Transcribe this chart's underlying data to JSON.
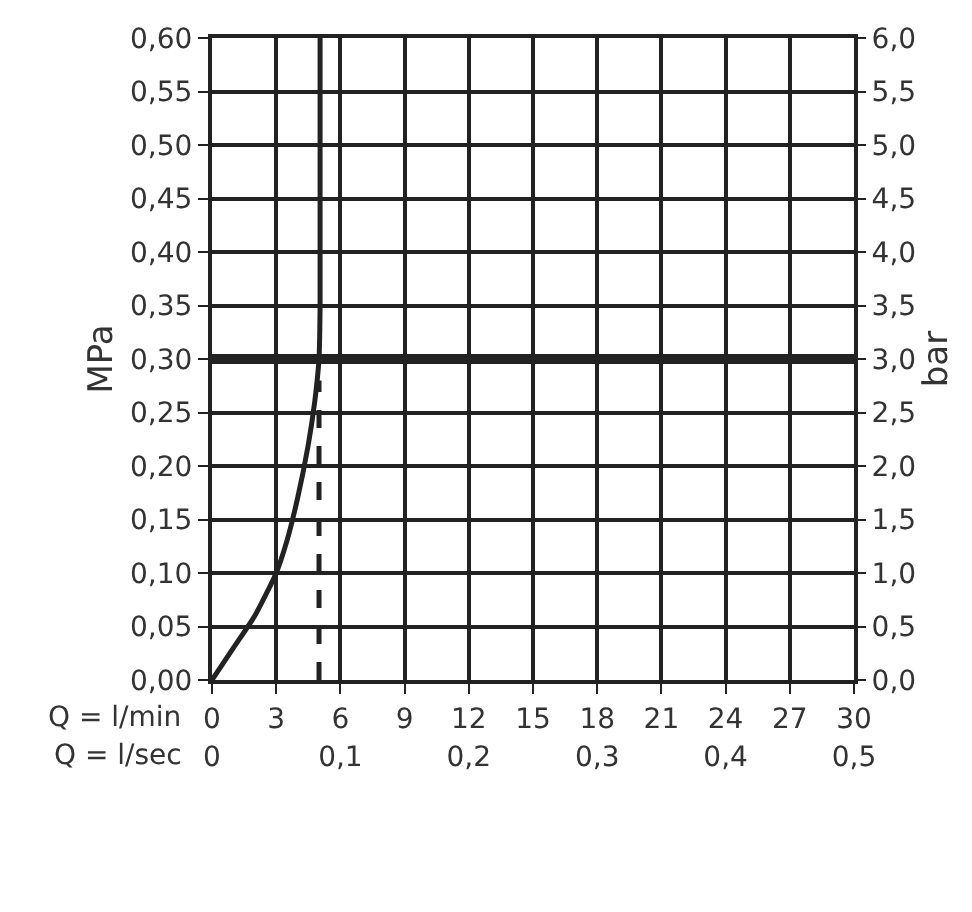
{
  "chart_data": {
    "type": "line",
    "xlabel": "Q = l/min",
    "x2label": "Q = l/sec",
    "ylabel": "MPa",
    "y2label": "bar",
    "xlim": [
      0,
      30
    ],
    "xticks": [
      0,
      3,
      6,
      9,
      12,
      15,
      18,
      21,
      24,
      27,
      30
    ],
    "x2lim": [
      0,
      0.5
    ],
    "x2ticks": [
      0,
      {
        "value": 0.1,
        "label": "0,1"
      },
      {
        "value": 0.2,
        "label": "0,2"
      },
      {
        "value": 0.3,
        "label": "0,3"
      },
      {
        "value": 0.4,
        "label": "0,4"
      },
      {
        "value": 0.5,
        "label": "0,5"
      }
    ],
    "ylim": [
      0,
      0.6
    ],
    "yticks": [
      {
        "value": 0,
        "label": "0,00"
      },
      {
        "value": 0.05,
        "label": "0,05"
      },
      {
        "value": 0.1,
        "label": "0,10"
      },
      {
        "value": 0.15,
        "label": "0,15"
      },
      {
        "value": 0.2,
        "label": "0,20"
      },
      {
        "value": 0.25,
        "label": "0,25"
      },
      {
        "value": 0.3,
        "label": "0,30"
      },
      {
        "value": 0.35,
        "label": "0,35"
      },
      {
        "value": 0.4,
        "label": "0,40"
      },
      {
        "value": 0.45,
        "label": "0,45"
      },
      {
        "value": 0.5,
        "label": "0,50"
      },
      {
        "value": 0.55,
        "label": "0,55"
      },
      {
        "value": 0.6,
        "label": "0,60"
      }
    ],
    "y2lim": [
      0,
      6
    ],
    "y2ticks": [
      {
        "value": 0,
        "label": "0,0"
      },
      {
        "value": 0.5,
        "label": "0,5"
      },
      {
        "value": 1,
        "label": "1,0"
      },
      {
        "value": 1.5,
        "label": "1,5"
      },
      {
        "value": 2,
        "label": "2,0"
      },
      {
        "value": 2.5,
        "label": "2,5"
      },
      {
        "value": 3,
        "label": "3,0"
      },
      {
        "value": 3.5,
        "label": "3,5"
      },
      {
        "value": 4,
        "label": "4,0"
      },
      {
        "value": 4.5,
        "label": "4,5"
      },
      {
        "value": 5,
        "label": "5,0"
      },
      {
        "value": 5.5,
        "label": "5,5"
      },
      {
        "value": 6,
        "label": "6,0"
      }
    ],
    "grid": true,
    "marker": "none",
    "series": [
      {
        "color": "#222222",
        "line_style": "solid",
        "x": [
          0,
          1,
          2,
          3,
          3.5,
          4,
          4.5,
          4.8,
          5,
          5.05,
          5.05
        ],
        "values": [
          0,
          0.03,
          0.06,
          0.1,
          0.13,
          0.17,
          0.22,
          0.26,
          0.3,
          0.35,
          0.6
        ]
      },
      {
        "color": "#222222",
        "line_style": "dashed",
        "x": [
          5,
          5
        ],
        "values": [
          0,
          0.28
        ]
      }
    ],
    "ref_lines": [
      {
        "axis": "y",
        "value": 0.3,
        "color": "#222222"
      }
    ]
  }
}
